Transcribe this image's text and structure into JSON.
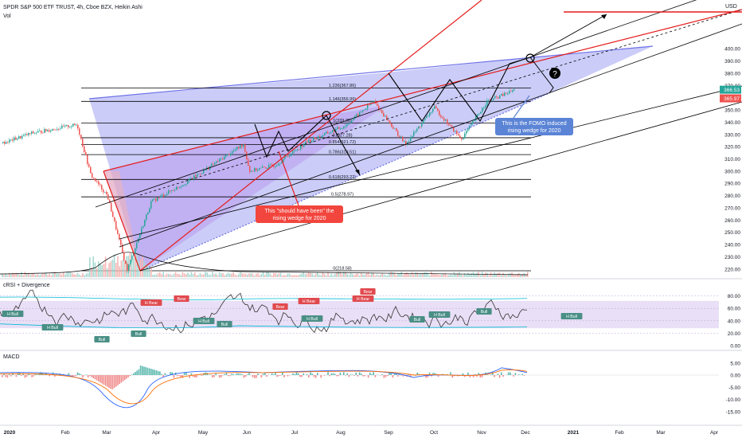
{
  "header": {
    "title": "SPDR S&P 500 ETF TRUST, 4h, Cboe BZX, Heikin Ashi",
    "vol_label": "Vol",
    "currency": "USD"
  },
  "panes": {
    "crsi_title": "cRSI + Divergence",
    "macd_title": "MACD"
  },
  "price_axis": {
    "ticks": [
      "400.00",
      "390.00",
      "380.00",
      "370.00",
      "360.00",
      "350.00",
      "340.00",
      "330.00",
      "320.00",
      "310.00",
      "300.00",
      "290.00",
      "280.00",
      "270.00",
      "260.00",
      "250.00",
      "240.00",
      "230.00",
      "220.00"
    ],
    "last_price": "366.53",
    "prev_price": "365.97"
  },
  "crsi_axis": {
    "ticks": [
      "80.00",
      "60.00",
      "40.00",
      "20.00",
      "0.00"
    ]
  },
  "macd_axis": {
    "ticks": [
      "5.00",
      "0.00",
      "-5.00",
      "-10.00",
      "-15.00"
    ]
  },
  "time_axis": {
    "labels": [
      "2020",
      "Feb",
      "Mar",
      "Apr",
      "May",
      "Jun",
      "Jul",
      "Aug",
      "Sep",
      "Oct",
      "Nov",
      "Dec",
      "2021",
      "Feb",
      "Mar",
      "Apr"
    ]
  },
  "fib_levels": [
    {
      "label": "1.236(367.86)",
      "value": 367.86
    },
    {
      "label": "1.146(356.99)",
      "value": 356.99
    },
    {
      "label": "1(339.36)",
      "value": 339.36
    },
    {
      "label": "0.(327.28)",
      "value": 327.28
    },
    {
      "label": "0.854(321.72)",
      "value": 321.72
    },
    {
      "label": "0.786(313.51)",
      "value": 313.51
    },
    {
      "label": "0.618(293.22)",
      "value": 293.22
    },
    {
      "label": "0.5(278.97)",
      "value": 278.97
    },
    {
      "label": "0(218.58)",
      "value": 218.58
    }
  ],
  "annotations": {
    "red_note": [
      "This \"should have been\" the",
      "rising wedge for 2020"
    ],
    "blue_note": [
      "This is the FOMO induced",
      "rising wedge for 2020"
    ],
    "question_mark": "?"
  },
  "crsi_labels": {
    "bull": "Bull",
    "bear": "Bear",
    "h_bull": "H Bull",
    "h_bear": "H Bear"
  },
  "colors": {
    "up": "#26a69a",
    "down": "#ef5350",
    "fib_line": "#000000",
    "trend_red": "#e51c1c",
    "wedge_blue": "#6e72e6",
    "red_note_bg": "#f2453d",
    "blue_note_bg": "#5b84d6"
  },
  "chart_data": {
    "type": "candlestick",
    "symbol": "SPDR S&P 500 ETF TRUST",
    "interval": "4h",
    "style": "Heikin Ashi",
    "y_range": [
      215,
      405
    ],
    "price_path": [
      {
        "date": "2020-01-01",
        "value": 323
      },
      {
        "date": "2020-01-20",
        "value": 331
      },
      {
        "date": "2020-02-19",
        "value": 338
      },
      {
        "date": "2020-02-28",
        "value": 297
      },
      {
        "date": "2020-03-10",
        "value": 280
      },
      {
        "date": "2020-03-23",
        "value": 219
      },
      {
        "date": "2020-04-08",
        "value": 275
      },
      {
        "date": "2020-04-30",
        "value": 290
      },
      {
        "date": "2020-06-08",
        "value": 322
      },
      {
        "date": "2020-06-12",
        "value": 300
      },
      {
        "date": "2020-06-29",
        "value": 305
      },
      {
        "date": "2020-07-20",
        "value": 324
      },
      {
        "date": "2020-08-14",
        "value": 337
      },
      {
        "date": "2020-09-02",
        "value": 357
      },
      {
        "date": "2020-09-23",
        "value": 322
      },
      {
        "date": "2020-10-12",
        "value": 352
      },
      {
        "date": "2020-10-30",
        "value": 326
      },
      {
        "date": "2020-11-16",
        "value": 357
      },
      {
        "date": "2020-11-30",
        "value": 364
      },
      {
        "date": "2020-12-04",
        "value": 366.53
      }
    ],
    "crsi_range": [
      0,
      100
    ],
    "macd_range": [
      -18,
      10
    ]
  }
}
